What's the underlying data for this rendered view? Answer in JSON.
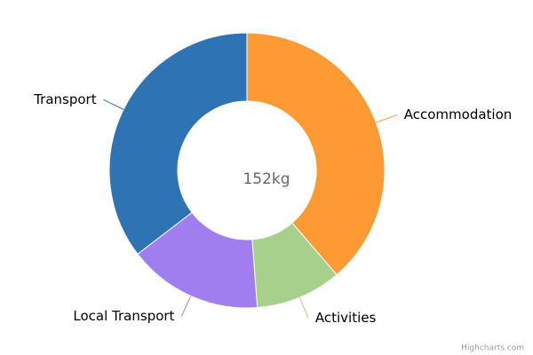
{
  "chart_data": {
    "type": "pie",
    "center_label": "152kg",
    "credits": "Highcharts.com",
    "categories": [
      "Accommodation",
      "Activities",
      "Local Transport",
      "Transport"
    ],
    "values": [
      38.7,
      10.1,
      15.8,
      35.4
    ],
    "colors": [
      "#fe9a34",
      "#a7d08c",
      "#a07ef0",
      "#2e74b5"
    ]
  }
}
